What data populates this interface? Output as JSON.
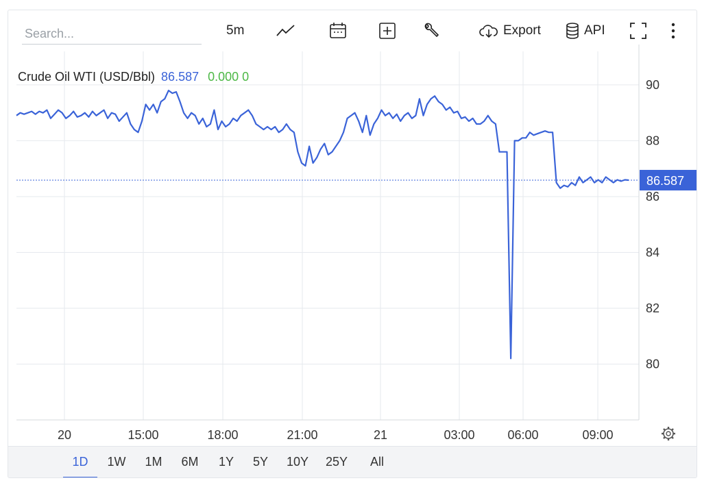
{
  "toolbar": {
    "search_placeholder": "Search...",
    "interval_label": "5m",
    "export_label": "Export",
    "api_label": "API",
    "icons": [
      "line-chart-icon",
      "calendar-icon",
      "compare-plus-icon",
      "wrench-icon",
      "cloud-download-icon",
      "database-icon",
      "fullscreen-icon",
      "more-vertical-icon"
    ]
  },
  "series_header": {
    "name": "Crude Oil WTI (USD/Bbl)",
    "price": "86.587",
    "change": "0.000 0"
  },
  "colors": {
    "line": "#3a63d8",
    "change_positive": "#4cb845",
    "badge": "#3a63d8",
    "grid": "#e6e9ee"
  },
  "range_buttons": [
    "1D",
    "1W",
    "1M",
    "6M",
    "1Y",
    "5Y",
    "10Y",
    "25Y",
    "All"
  ],
  "active_range": "1D",
  "chart_data": {
    "type": "line",
    "title": "Crude Oil WTI (USD/Bbl)",
    "last_price_label": "86.587",
    "y_ticks": [
      "90",
      "88",
      "86",
      "84",
      "82",
      "80"
    ],
    "ylim": [
      78,
      91.2
    ],
    "x_ticks": [
      "20",
      "15:00",
      "18:00",
      "21:00",
      "21",
      "03:00",
      "06:00",
      "09:00"
    ],
    "grid": true,
    "series": [
      {
        "values": [
          88.9,
          89.0,
          88.95,
          89.0,
          89.05,
          88.95,
          89.05,
          89.0,
          89.1,
          88.8,
          88.95,
          89.1,
          89.0,
          88.8,
          88.9,
          89.05,
          88.85,
          88.9,
          89.0,
          88.85,
          89.05,
          88.9,
          89.0,
          89.1,
          88.8,
          89.0,
          88.95,
          88.7,
          88.85,
          89.0,
          88.6,
          88.4,
          88.3,
          88.7,
          89.3,
          89.1,
          89.3,
          89.0,
          89.4,
          89.5,
          89.8,
          89.7,
          89.75,
          89.4,
          89.0,
          88.8,
          89.0,
          88.9,
          88.6,
          88.8,
          88.5,
          88.6,
          89.1,
          88.4,
          88.7,
          88.5,
          88.6,
          88.8,
          88.7,
          88.9,
          89.0,
          89.1,
          88.9,
          88.6,
          88.5,
          88.4,
          88.5,
          88.4,
          88.5,
          88.3,
          88.4,
          88.6,
          88.4,
          88.3,
          87.6,
          87.2,
          87.1,
          87.8,
          87.2,
          87.4,
          87.7,
          87.9,
          87.5,
          87.6,
          87.8,
          88.0,
          88.3,
          88.8,
          88.9,
          89.0,
          88.7,
          88.3,
          88.9,
          88.2,
          88.6,
          88.8,
          89.1,
          88.9,
          89.0,
          88.8,
          88.95,
          88.7,
          88.9,
          89.0,
          88.8,
          88.9,
          89.5,
          88.9,
          89.3,
          89.5,
          89.6,
          89.4,
          89.3,
          89.1,
          89.2,
          89.0,
          89.05,
          88.8,
          88.85,
          88.7,
          88.8,
          88.6,
          88.6,
          88.7,
          88.9,
          88.7,
          88.6,
          87.6,
          87.6,
          87.6,
          80.2,
          88.0,
          88.0,
          88.1,
          88.1,
          88.3,
          88.2,
          88.25,
          88.3,
          88.35,
          88.3,
          88.3,
          86.5,
          86.3,
          86.4,
          86.35,
          86.5,
          86.4,
          86.7,
          86.5,
          86.6,
          86.7,
          86.5,
          86.6,
          86.5,
          86.7,
          86.6,
          86.5,
          86.6,
          86.55,
          86.6,
          86.587
        ]
      }
    ]
  }
}
